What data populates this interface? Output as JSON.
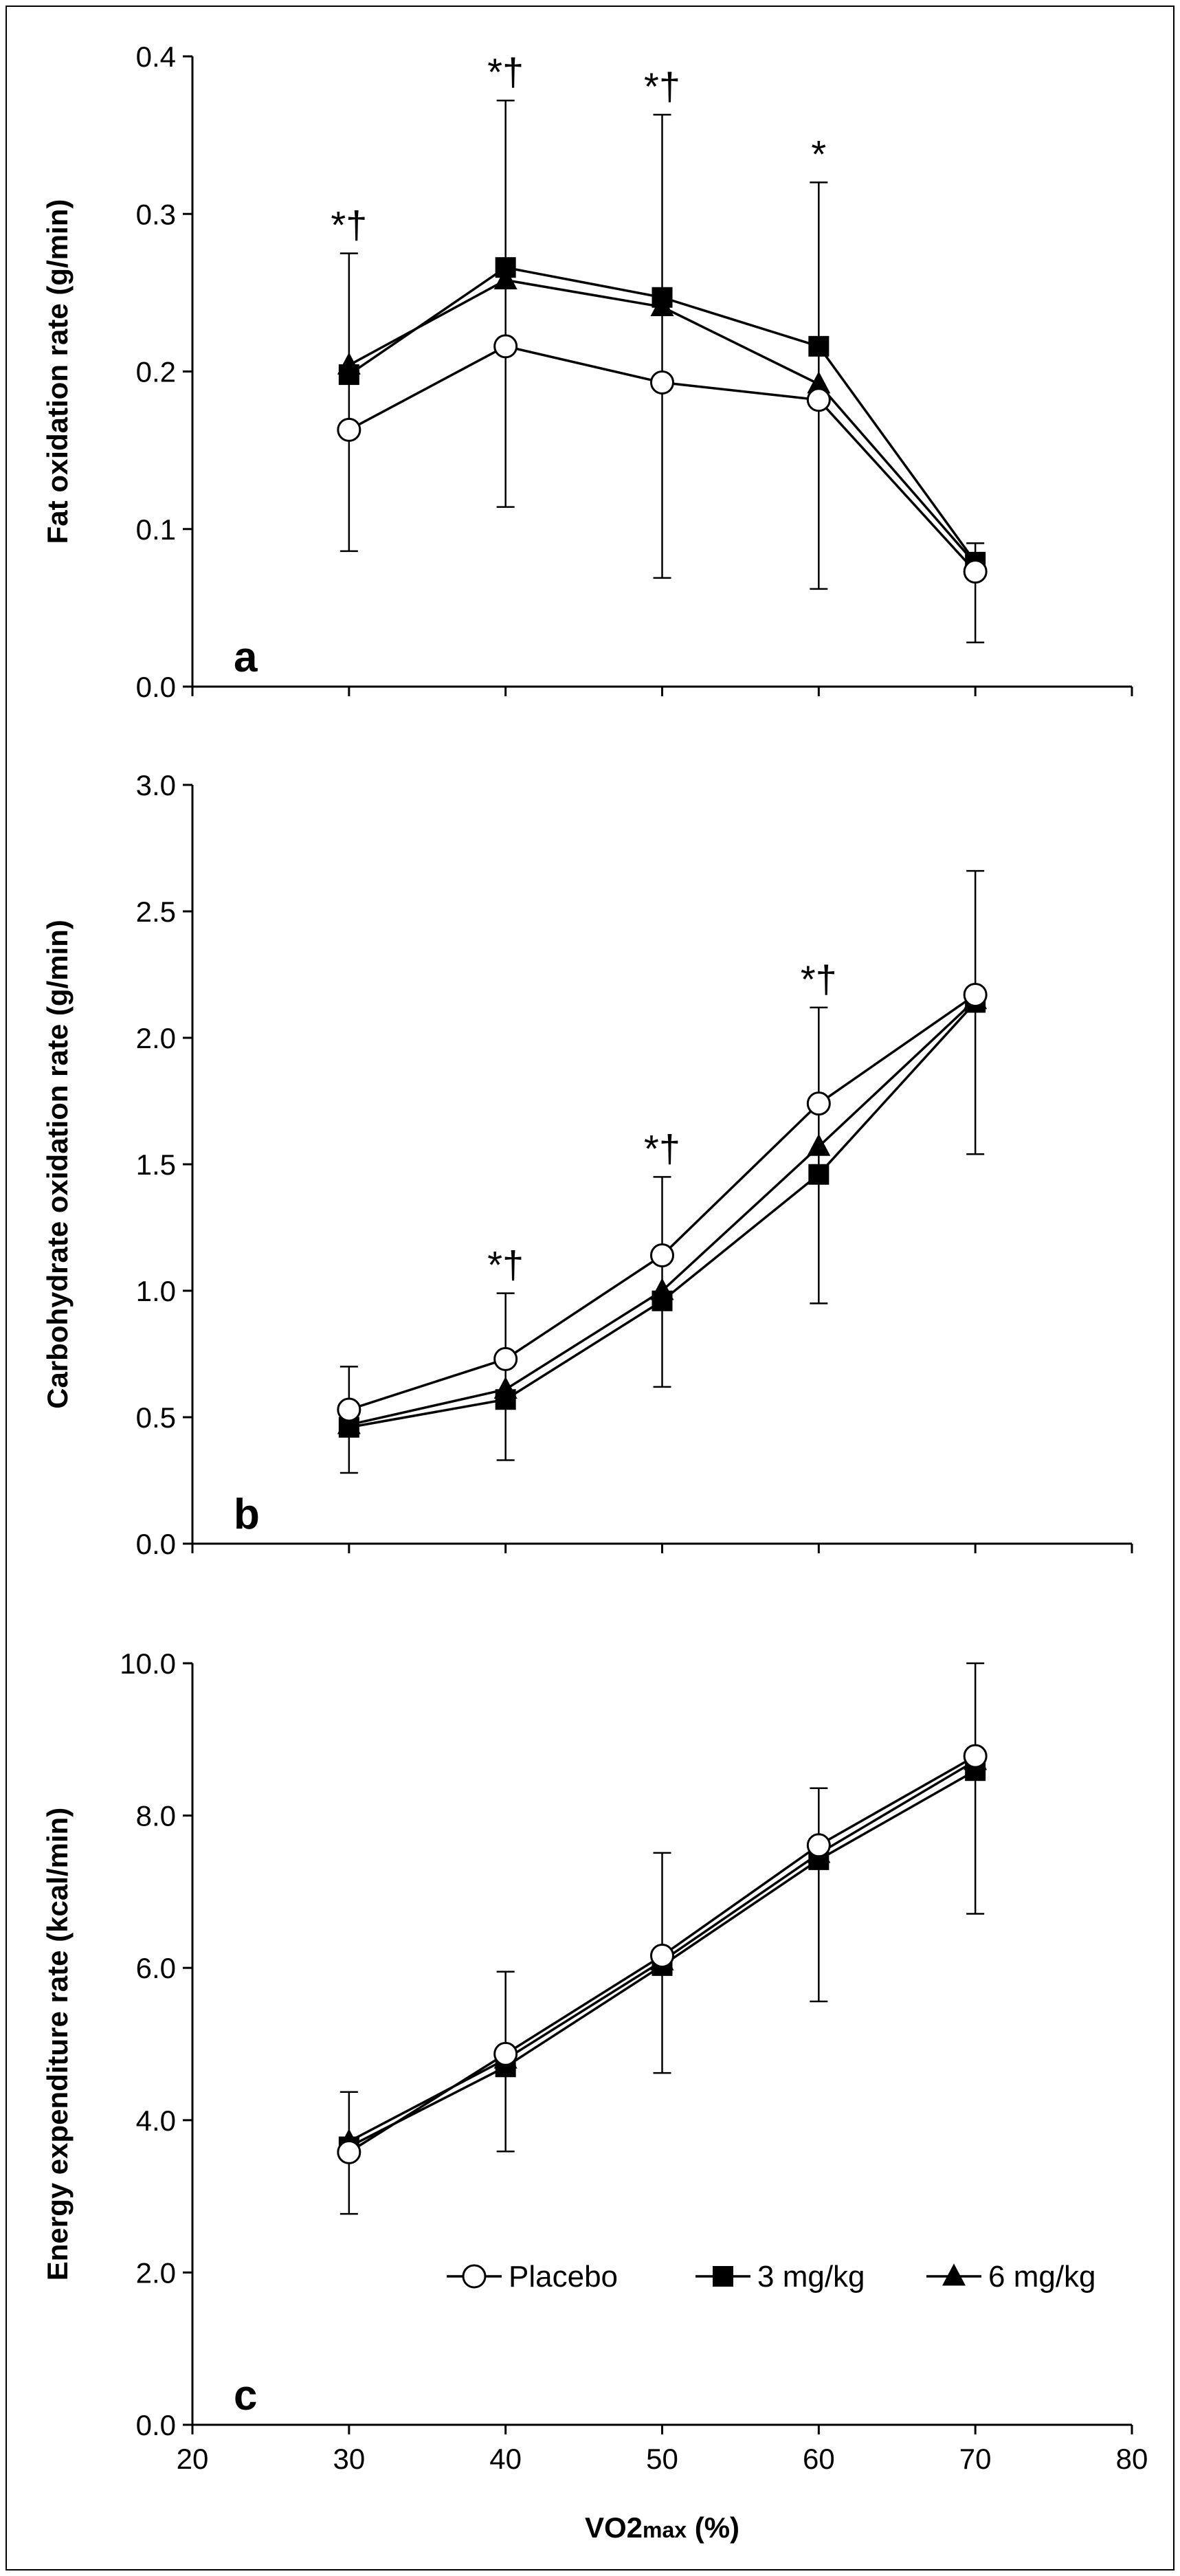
{
  "colors": {
    "line": "#000000",
    "background": "#ffffff",
    "open_marker": "#ffffff"
  },
  "x_axis": {
    "label_main": "VO2",
    "label_sub": "max",
    "label_tail": " (%)",
    "range": [
      20,
      80
    ],
    "ticks": [
      "20",
      "30",
      "40",
      "50",
      "60",
      "70",
      "80"
    ]
  },
  "legend": {
    "placement": "bottom-right of panel c",
    "entries": [
      {
        "name": "Placebo",
        "marker": "open-circle"
      },
      {
        "name": "3 mg/kg",
        "marker": "filled-square"
      },
      {
        "name": "6 mg/kg",
        "marker": "filled-triangle"
      }
    ]
  },
  "chart_data": [
    {
      "type": "line",
      "panel_label": "a",
      "ylabel": "Fat oxidation rate (g/min)",
      "ylim": [
        0,
        0.4
      ],
      "yticks": [
        "0.0",
        "0.1",
        "0.2",
        "0.3",
        "0.4"
      ],
      "x": [
        30,
        40,
        50,
        60,
        70
      ],
      "series": [
        {
          "name": "Placebo",
          "marker": "open-circle",
          "values": [
            0.163,
            0.216,
            0.193,
            0.182,
            0.073
          ]
        },
        {
          "name": "3 mg/kg",
          "marker": "filled-square",
          "values": [
            0.198,
            0.266,
            0.247,
            0.216,
            0.079
          ]
        },
        {
          "name": "6 mg/kg",
          "marker": "filled-triangle",
          "values": [
            0.204,
            0.258,
            0.241,
            0.192,
            0.078
          ]
        }
      ],
      "error_bars": [
        {
          "x": 30,
          "low": 0.086,
          "high": 0.275
        },
        {
          "x": 40,
          "low": 0.114,
          "high": 0.372
        },
        {
          "x": 50,
          "low": 0.069,
          "high": 0.363
        },
        {
          "x": 60,
          "low": 0.062,
          "high": 0.32
        },
        {
          "x": 70,
          "low": 0.028,
          "high": 0.091
        }
      ],
      "annotations": [
        {
          "x": 30,
          "text": "*†"
        },
        {
          "x": 40,
          "text": "*†"
        },
        {
          "x": 50,
          "text": "*†"
        },
        {
          "x": 60,
          "text": "*"
        }
      ]
    },
    {
      "type": "line",
      "panel_label": "b",
      "ylabel": "Carbohydrate oxidation rate (g/min)",
      "ylim": [
        0,
        3.0
      ],
      "yticks": [
        "0.0",
        "0.5",
        "1.0",
        "1.5",
        "2.0",
        "2.5",
        "3.0"
      ],
      "x": [
        30,
        40,
        50,
        60,
        70
      ],
      "series": [
        {
          "name": "Placebo",
          "marker": "open-circle",
          "values": [
            0.53,
            0.73,
            1.14,
            1.74,
            2.17
          ]
        },
        {
          "name": "3 mg/kg",
          "marker": "filled-square",
          "values": [
            0.46,
            0.57,
            0.96,
            1.46,
            2.14
          ]
        },
        {
          "name": "6 mg/kg",
          "marker": "filled-triangle",
          "values": [
            0.47,
            0.61,
            1.0,
            1.57,
            2.15
          ]
        }
      ],
      "error_bars": [
        {
          "x": 30,
          "low": 0.28,
          "high": 0.7
        },
        {
          "x": 40,
          "low": 0.33,
          "high": 0.99
        },
        {
          "x": 50,
          "low": 0.62,
          "high": 1.45
        },
        {
          "x": 60,
          "low": 0.95,
          "high": 2.12
        },
        {
          "x": 70,
          "low": 1.54,
          "high": 2.66
        }
      ],
      "annotations": [
        {
          "x": 40,
          "text": "*†"
        },
        {
          "x": 50,
          "text": "*†"
        },
        {
          "x": 60,
          "text": "*†"
        }
      ]
    },
    {
      "type": "line",
      "panel_label": "c",
      "ylabel": "Energy expenditure rate (kcal/min)",
      "ylim": [
        0,
        10.0
      ],
      "yticks": [
        "0.0",
        "2.0",
        "4.0",
        "6.0",
        "8.0",
        "10.0"
      ],
      "x": [
        30,
        40,
        50,
        60,
        70
      ],
      "series": [
        {
          "name": "Placebo",
          "marker": "open-circle",
          "values": [
            3.58,
            4.87,
            6.16,
            7.61,
            8.78
          ]
        },
        {
          "name": "3 mg/kg",
          "marker": "filled-square",
          "values": [
            3.65,
            4.7,
            6.03,
            7.42,
            8.59
          ]
        },
        {
          "name": "6 mg/kg",
          "marker": "filled-triangle",
          "values": [
            3.72,
            4.8,
            6.09,
            7.5,
            8.72
          ]
        }
      ],
      "error_bars": [
        {
          "x": 30,
          "low": 2.77,
          "high": 4.37
        },
        {
          "x": 40,
          "low": 3.59,
          "high": 5.95
        },
        {
          "x": 50,
          "low": 4.62,
          "high": 7.51
        },
        {
          "x": 60,
          "low": 5.56,
          "high": 8.36
        },
        {
          "x": 70,
          "low": 6.71,
          "high": 10.0
        }
      ],
      "annotations": []
    }
  ]
}
